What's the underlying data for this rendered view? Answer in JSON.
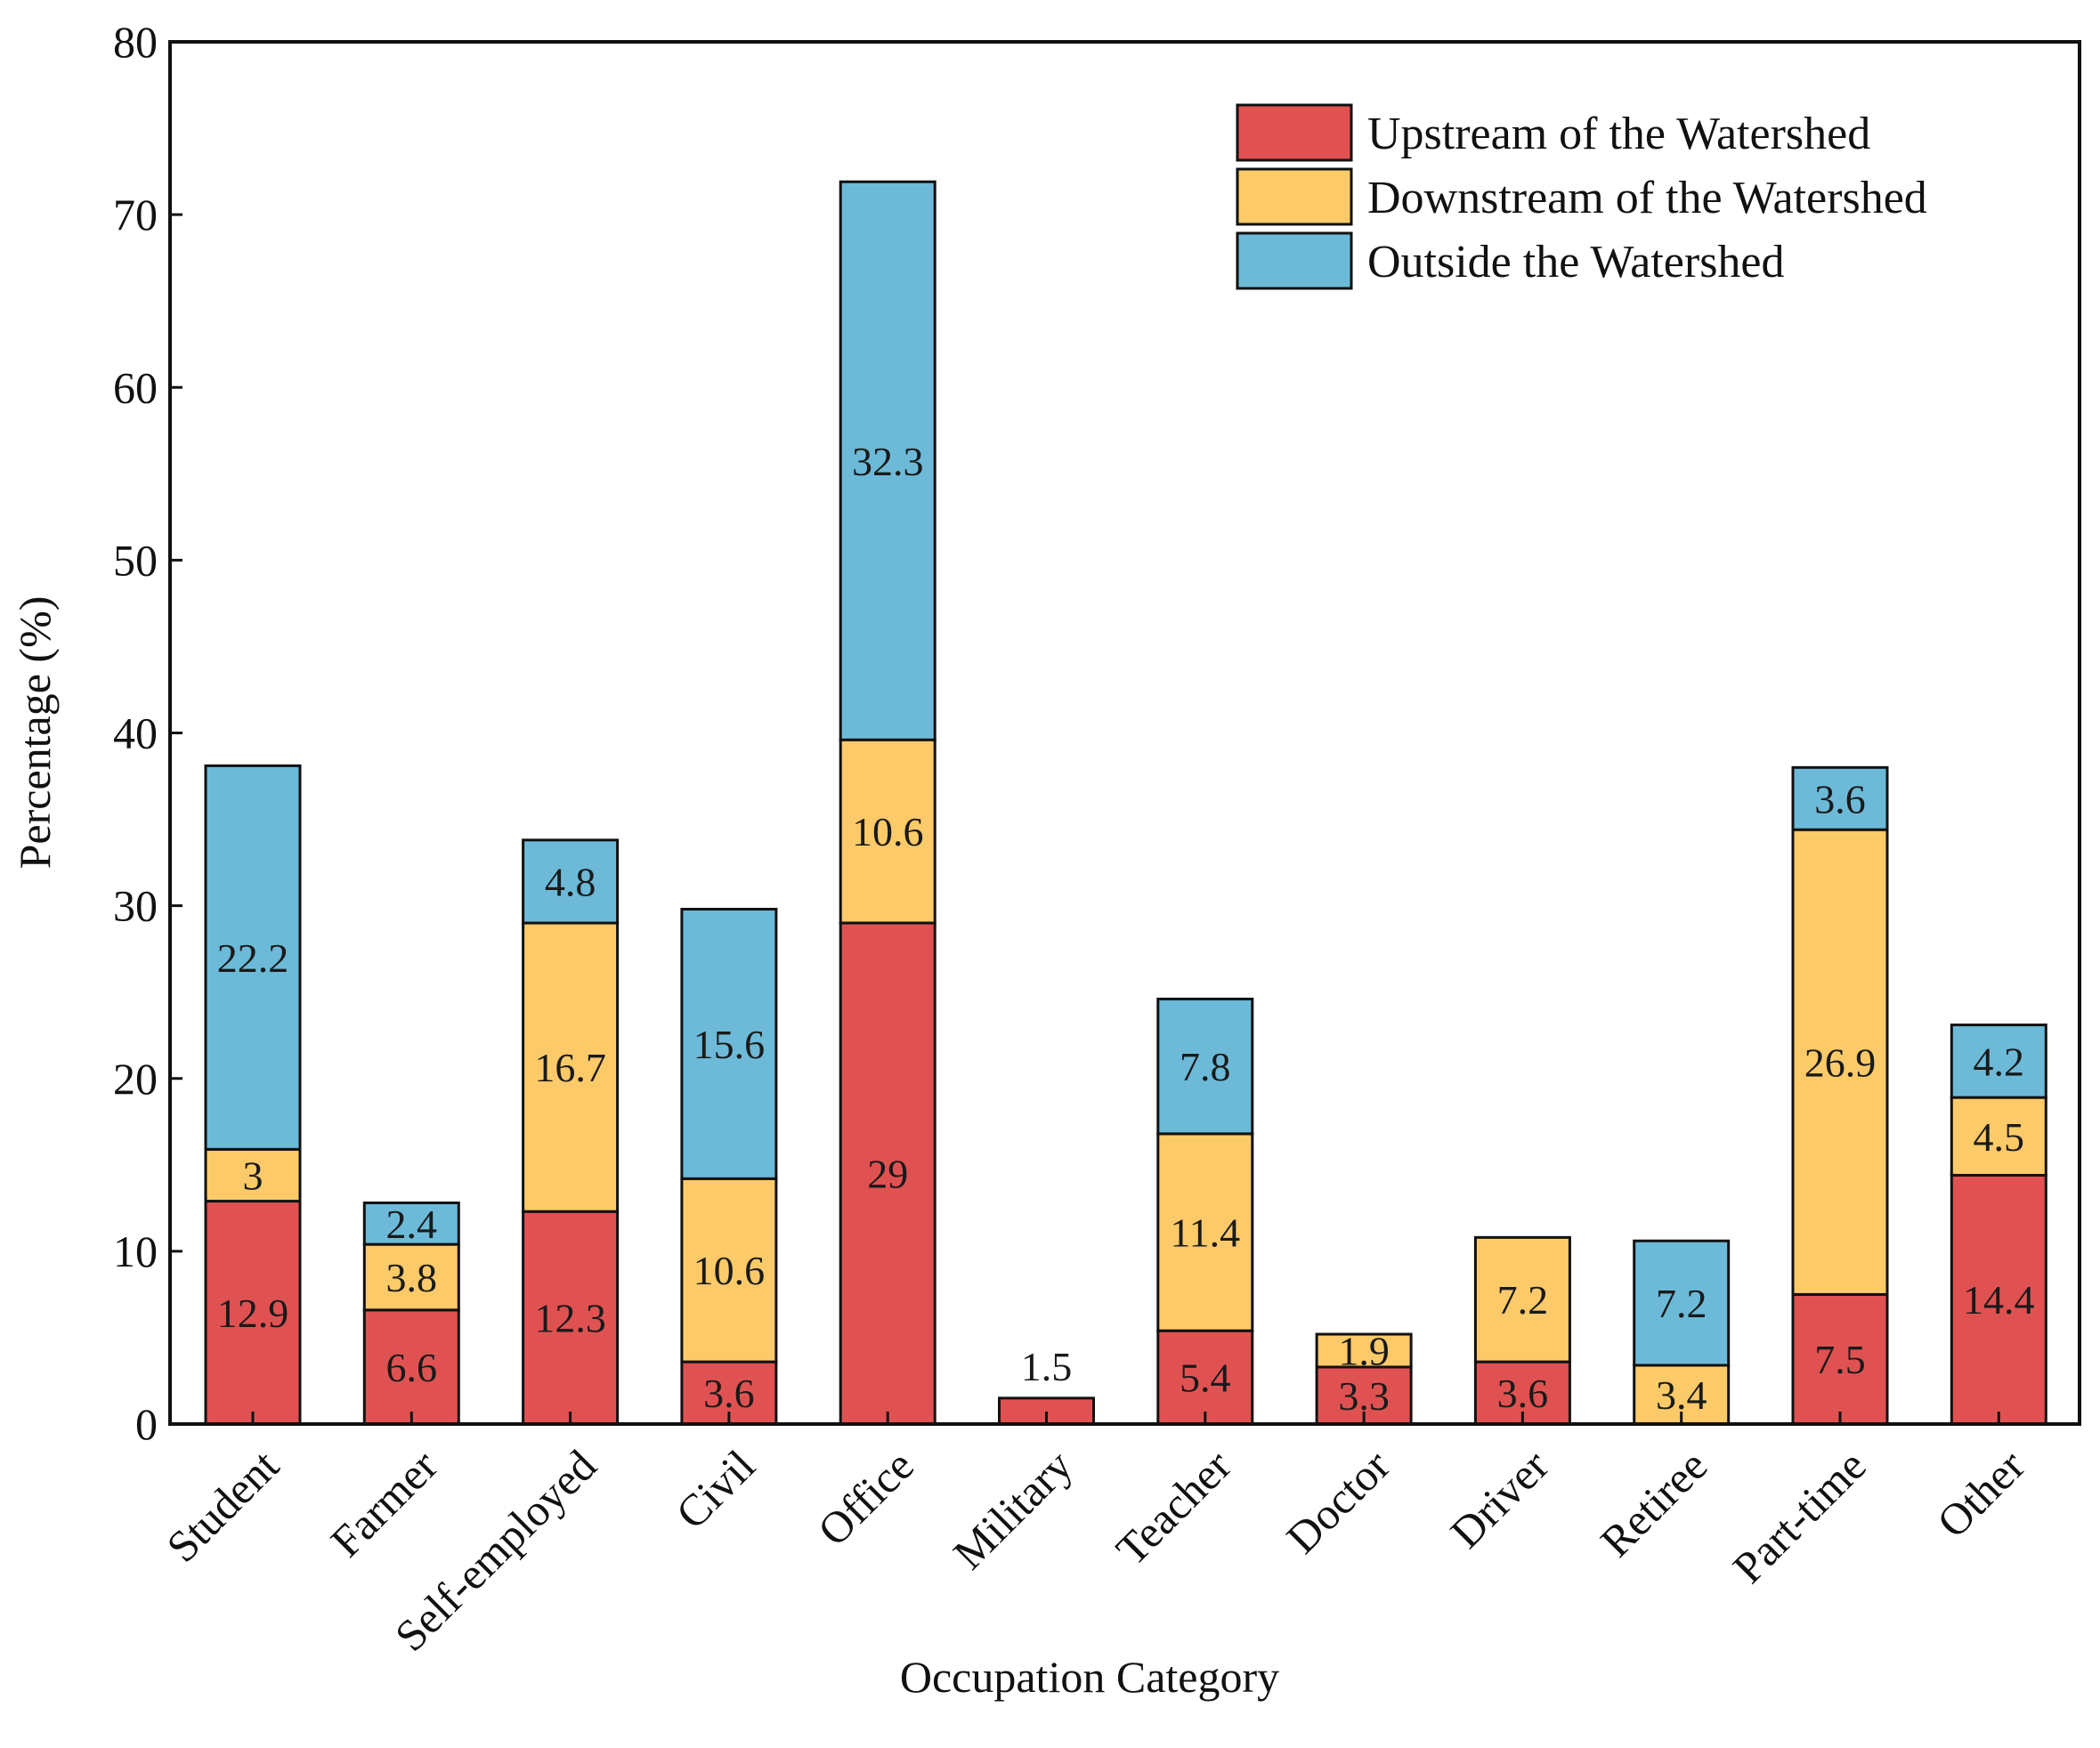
{
  "chart_data": {
    "type": "bar",
    "stacked": true,
    "title": "",
    "xlabel": "Occupation Category",
    "ylabel": "Percentage (%)",
    "ylim": [
      0,
      80
    ],
    "yticks": [
      0,
      10,
      20,
      30,
      40,
      50,
      60,
      70,
      80
    ],
    "categories": [
      "Student",
      "Farmer",
      "Self-employed",
      "Civil",
      "Office",
      "Military",
      "Teacher",
      "Doctor",
      "Driver",
      "Retiree",
      "Part-time",
      "Other"
    ],
    "series": [
      {
        "name": "Upstream of the Watershed",
        "color": "#e05252",
        "values": [
          12.9,
          6.6,
          12.3,
          3.6,
          29,
          1.5,
          5.4,
          3.3,
          3.6,
          0,
          7.5,
          14.4
        ]
      },
      {
        "name": "Downstream of the Watershed",
        "color": "#fdca69",
        "values": [
          3,
          3.8,
          16.7,
          10.6,
          10.6,
          0,
          11.4,
          1.9,
          7.2,
          3.4,
          26.9,
          4.5
        ]
      },
      {
        "name": "Outside the Watershed",
        "color": "#6cbad8",
        "values": [
          22.2,
          2.4,
          4.8,
          15.6,
          32.3,
          0,
          7.8,
          0,
          0,
          7.2,
          3.6,
          4.2
        ]
      }
    ],
    "labels": [
      [
        "12.9",
        "6.6",
        "12.3",
        "3.6",
        "29",
        "1.5",
        "5.4",
        "3.3",
        "3.6",
        "",
        "7.5",
        "14.4"
      ],
      [
        "3",
        "3.8",
        "16.7",
        "10.6",
        "10.6",
        "",
        "11.4",
        "1.9",
        "7.2",
        "3.4",
        "26.9",
        "4.5"
      ],
      [
        "22.2",
        "2.4",
        "4.8",
        "15.6",
        "32.3",
        "",
        "7.8",
        "",
        "",
        "7.2",
        "3.6",
        "4.2"
      ]
    ],
    "labels_above_bar": [
      false,
      false,
      false,
      false,
      false,
      true,
      false,
      false,
      false,
      false,
      false,
      false
    ],
    "legend_position": "top-right",
    "grid": false
  }
}
